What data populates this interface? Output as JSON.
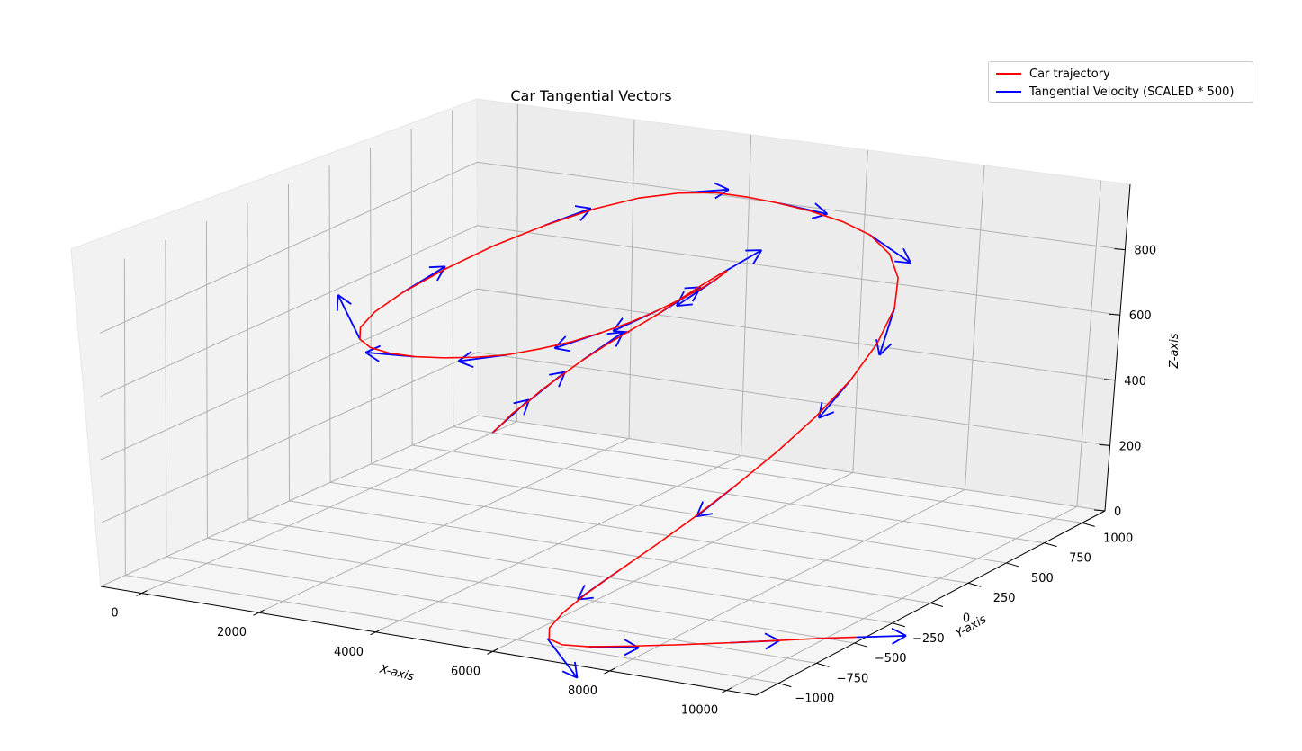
{
  "chart_data": {
    "type": "line",
    "projection": "3d",
    "title": "Car Tangential Vectors",
    "xlabel": "X-axis",
    "ylabel": "Y-axis",
    "zlabel": "Z-axis",
    "xlim": [
      -700,
      10500
    ],
    "ylim": [
      -1150,
      1150
    ],
    "zlim": [
      0,
      1000
    ],
    "xticks": [
      0,
      2000,
      4000,
      6000,
      8000,
      10000
    ],
    "yticks": [
      -1000,
      -750,
      -500,
      -250,
      0,
      250,
      500,
      750,
      1000
    ],
    "zticks": [
      0,
      200,
      400,
      600,
      800
    ],
    "ytick_labels": [
      "−1000",
      "−750",
      "−500",
      "−250",
      "0",
      "250",
      "500",
      "750",
      "1000"
    ],
    "grid": true,
    "legend_position": "top-right",
    "colors": {
      "trajectory": "#ff0000",
      "tangent": "#0000ff"
    },
    "series": [
      {
        "name": "Car trajectory",
        "x": [
          0,
          160,
          350,
          600,
          880,
          1200,
          1580,
          2000,
          2450,
          2900,
          3300,
          3650,
          3950,
          4200,
          4400,
          4550,
          4650,
          4700,
          4720,
          4700,
          4620,
          4520,
          4380,
          4200,
          3980,
          3720,
          3440,
          3150,
          2880,
          2650,
          2470,
          2360,
          2320,
          2360,
          2480,
          2700,
          3000,
          3380,
          3850,
          4380,
          4950,
          5550,
          6150,
          6750,
          7300,
          7780,
          8150,
          8400,
          8520,
          8540,
          8450,
          8280,
          8040,
          7750,
          7440,
          7130,
          6850,
          6640,
          6530,
          6560,
          6760,
          7120,
          7630,
          8230,
          8850,
          9450,
          9970,
          10380
        ],
        "y": [
          1000,
          1000,
          1000,
          1000,
          1000,
          1000,
          1000,
          1000,
          1000,
          1000,
          1000,
          1000,
          990,
          950,
          870,
          760,
          630,
          480,
          320,
          160,
          0,
          -150,
          -300,
          -440,
          -560,
          -660,
          -740,
          -790,
          -810,
          -790,
          -720,
          -590,
          -400,
          -160,
          100,
          340,
          540,
          680,
          760,
          790,
          780,
          760,
          740,
          720,
          690,
          640,
          560,
          450,
          300,
          130,
          -50,
          -230,
          -400,
          -550,
          -680,
          -790,
          -880,
          -950,
          -990,
          -1000,
          -990,
          -950,
          -880,
          -790,
          -690,
          -590,
          -500,
          -440
        ],
        "z": [
          0,
          30,
          70,
          110,
          160,
          210,
          270,
          330,
          390,
          450,
          510,
          560,
          600,
          630,
          650,
          660,
          665,
          668,
          670,
          672,
          675,
          680,
          690,
          700,
          715,
          730,
          745,
          760,
          775,
          790,
          805,
          820,
          835,
          850,
          865,
          878,
          890,
          900,
          908,
          915,
          918,
          918,
          913,
          900,
          880,
          845,
          800,
          740,
          670,
          600,
          530,
          460,
          390,
          320,
          255,
          195,
          140,
          90,
          50,
          20,
          5,
          0,
          0,
          0,
          0,
          0,
          0,
          0
        ]
      },
      {
        "name": "Tangential Velocity (SCALED * 500)",
        "x": [
          0,
          600,
          1580,
          2900,
          3950,
          4550,
          4720,
          4620,
          4200,
          3440,
          2650,
          2320,
          2700,
          3850,
          5550,
          7300,
          8400,
          8540,
          8040,
          7130,
          6530,
          7120,
          8850,
          10380
        ],
        "y": [
          1000,
          1000,
          1000,
          1000,
          990,
          760,
          320,
          0,
          -440,
          -740,
          -790,
          -400,
          340,
          760,
          760,
          690,
          450,
          130,
          -400,
          -790,
          -1000,
          -950,
          -690,
          -440
        ],
        "z": [
          0,
          110,
          270,
          450,
          600,
          660,
          670,
          675,
          700,
          745,
          790,
          835,
          878,
          908,
          918,
          880,
          740,
          600,
          390,
          195,
          20,
          0,
          0,
          0
        ]
      }
    ]
  }
}
